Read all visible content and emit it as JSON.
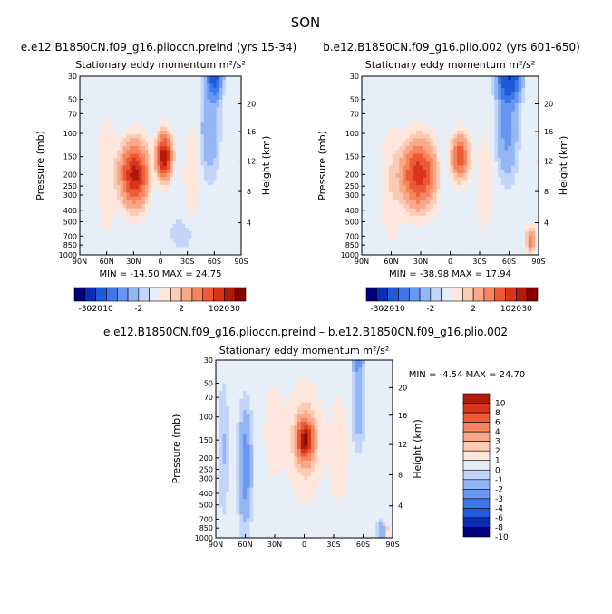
{
  "figure": {
    "title": "SON"
  },
  "color_palette": [
    "#00007f",
    "#0a2db5",
    "#1f5ad9",
    "#3c78eb",
    "#6996f0",
    "#95b6f5",
    "#c3d5f8",
    "#e6eef7",
    "#fde7dc",
    "#fbcbb3",
    "#f9a98a",
    "#f5845f",
    "#ef5a36",
    "#d9351c",
    "#b01a0a",
    "#860000"
  ],
  "chart_data": [
    {
      "type": "heatmap",
      "title": "e.e12.B1850CN.f09_g16.plioccn.preind (yrs 15-34)",
      "subtitle": "Stationary eddy momentum  m²/s²",
      "ylabel": "Pressure (mb)",
      "y2label": "Height (km)",
      "x_ticks": [
        "90N",
        "60N",
        "30N",
        "0",
        "30S",
        "60S",
        "90S"
      ],
      "y_ticks": [
        "30",
        "50",
        "70",
        "100",
        "150",
        "200",
        "250",
        "300",
        "400",
        "500",
        "700",
        "850",
        "1000"
      ],
      "y2_ticks": [
        "20",
        "16",
        "12",
        "8",
        "4"
      ],
      "stats": "MIN = -14.50   MAX =  24.75",
      "min": -14.5,
      "max": 24.75,
      "colorbar_labels": [
        "-30",
        "-20",
        "-10",
        "-2",
        "2",
        "10",
        "20",
        "30"
      ],
      "features": [
        {
          "lat": 29,
          "p": 200,
          "value": 22,
          "note": "main positive maximum"
        },
        {
          "lat": -4,
          "p": 150,
          "value": 24.75,
          "note": "equatorial maximum"
        },
        {
          "lat": -60,
          "p": 30,
          "value": -14.5,
          "note": "southern negative"
        }
      ]
    },
    {
      "type": "heatmap",
      "title": "b.e12.B1850CN.f09_g16.plio.002 (yrs 601-650)",
      "subtitle": "Stationary eddy momentum  m²/s²",
      "ylabel": "Pressure (mb)",
      "y2label": "Height (km)",
      "x_ticks": [
        "90N",
        "60N",
        "30N",
        "0",
        "30S",
        "60S",
        "90S"
      ],
      "y_ticks": [
        "30",
        "50",
        "70",
        "100",
        "150",
        "200",
        "250",
        "300",
        "400",
        "500",
        "700",
        "850",
        "1000"
      ],
      "y2_ticks": [
        "20",
        "16",
        "12",
        "8",
        "4"
      ],
      "stats": "MIN = -38.98   MAX =  17.94",
      "min": -38.98,
      "max": 17.94,
      "colorbar_labels": [
        "-30",
        "-20",
        "-10",
        "-2",
        "2",
        "10",
        "20",
        "30"
      ],
      "features": [
        {
          "lat": 32,
          "p": 200,
          "value": 17.9,
          "note": "main positive maximum"
        },
        {
          "lat": -10,
          "p": 150,
          "value": 14,
          "note": "equatorial maximum"
        },
        {
          "lat": -60,
          "p": 30,
          "value": -20,
          "note": "southern negative"
        }
      ]
    },
    {
      "type": "heatmap",
      "title": "e.e12.B1850CN.f09_g16.plioccn.preind – b.e12.B1850CN.f09_g16.plio.002",
      "subtitle": "Stationary eddy momentum  m²/s²",
      "ylabel": "Pressure (mb)",
      "y2label": "Height (km)",
      "x_ticks": [
        "90N",
        "60N",
        "30N",
        "0",
        "30S",
        "60S",
        "90S"
      ],
      "y_ticks": [
        "30",
        "50",
        "70",
        "100",
        "150",
        "200",
        "250",
        "300",
        "400",
        "500",
        "700",
        "850",
        "1000"
      ],
      "y2_ticks": [
        "20",
        "16",
        "12",
        "8",
        "4"
      ],
      "stats": "MIN =   -4.54   MAX =  24.70",
      "min": -4.54,
      "max": 24.7,
      "legend_labels": [
        "10",
        "8",
        "6",
        "4",
        "3",
        "2",
        "1",
        "0",
        "-1",
        "-2",
        "-3",
        "-4",
        "-6",
        "-8",
        "-10"
      ],
      "features": [
        {
          "lat": -1,
          "p": 150,
          "value": 24.7,
          "note": "equatorial positive maximum"
        },
        {
          "lat": 60,
          "p": 250,
          "value": -4.5,
          "note": "northern negative"
        }
      ]
    }
  ]
}
